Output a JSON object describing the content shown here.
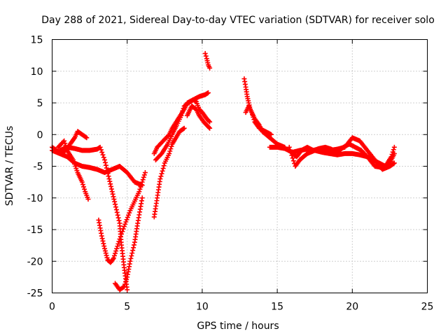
{
  "chart_data": {
    "type": "scatter",
    "title": "Day 288 of 2021, Sidereal Day-to-day VTEC variation (SDTVAR) for receiver solo",
    "xlabel": "GPS time / hours",
    "ylabel": "SDTVAR / TECUs",
    "xlim": [
      0,
      25
    ],
    "ylim": [
      -25,
      15
    ],
    "xticks": [
      0,
      5,
      10,
      15,
      20,
      25
    ],
    "yticks": [
      -25,
      -20,
      -15,
      -10,
      -5,
      0,
      5,
      10,
      15
    ],
    "grid": true,
    "marker": "+",
    "color": "#ff0000",
    "series": [
      {
        "name": "trace-1",
        "x": [
          0.0,
          0.3,
          0.6,
          0.9,
          1.2,
          1.5,
          1.7,
          2.0,
          2.3
        ],
        "y": [
          -2.0,
          -2.5,
          -3.0,
          -2.5,
          -1.5,
          -0.5,
          0.5,
          0.0,
          -0.5
        ]
      },
      {
        "name": "trace-2",
        "x": [
          0.4,
          0.8,
          1.0,
          1.4,
          1.7,
          2.0,
          2.2,
          2.4
        ],
        "y": [
          -2.0,
          -1.0,
          -2.5,
          -4.0,
          -6.0,
          -7.5,
          -9.0,
          -10.2
        ]
      },
      {
        "name": "trace-3",
        "x": [
          0.0,
          0.5,
          1.0,
          1.5,
          2.0,
          2.5,
          3.0,
          3.5,
          4.0,
          4.5,
          5.0,
          5.5,
          6.0
        ],
        "y": [
          -2.5,
          -3.0,
          -3.5,
          -4.5,
          -5.0,
          -5.2,
          -5.5,
          -6.0,
          -5.5,
          -5.0,
          -6.0,
          -7.5,
          -8.0
        ]
      },
      {
        "name": "trace-4",
        "x": [
          0.5,
          1.0,
          1.5,
          2.0,
          2.5,
          3.0,
          3.2,
          3.5,
          3.8,
          4.0,
          4.2,
          4.5,
          4.6,
          4.8,
          5.0
        ],
        "y": [
          -2.5,
          -2.0,
          -2.2,
          -2.5,
          -2.5,
          -2.3,
          -2.0,
          -4.0,
          -7.0,
          -9.0,
          -11.0,
          -14.0,
          -17.0,
          -21.0,
          -24.5
        ]
      },
      {
        "name": "trace-5",
        "x": [
          3.1,
          3.3,
          3.5,
          3.7,
          3.9,
          4.1,
          4.3,
          4.5,
          4.8,
          5.2,
          5.5,
          5.8,
          6.0,
          6.2
        ],
        "y": [
          -13.5,
          -16.0,
          -18.0,
          -19.8,
          -20.2,
          -19.5,
          -18.0,
          -16.5,
          -14.5,
          -12.0,
          -10.5,
          -9.0,
          -7.5,
          -6.0
        ]
      },
      {
        "name": "trace-6",
        "x": [
          4.2,
          4.5,
          4.8,
          5.0,
          5.2,
          5.5,
          5.7,
          6.0
        ],
        "y": [
          -23.5,
          -24.5,
          -24.0,
          -22.5,
          -20.0,
          -17.0,
          -14.0,
          -10.0
        ]
      },
      {
        "name": "trace-7",
        "x": [
          6.8,
          7.0,
          7.2,
          7.5,
          7.8,
          8.0,
          8.5,
          8.8
        ],
        "y": [
          -13.0,
          -10.0,
          -7.0,
          -4.5,
          -3.0,
          -1.5,
          0.5,
          1.0
        ]
      },
      {
        "name": "trace-8",
        "x": [
          6.8,
          7.0,
          7.4,
          7.8,
          8.0,
          8.4,
          8.8,
          9.0,
          9.4,
          9.8,
          10.2,
          10.4
        ],
        "y": [
          -3.0,
          -2.0,
          -1.0,
          0.0,
          1.0,
          2.5,
          4.0,
          5.0,
          5.5,
          6.0,
          6.3,
          6.6
        ]
      },
      {
        "name": "trace-9",
        "x": [
          6.9,
          7.3,
          7.7,
          8.0,
          8.3,
          8.6,
          8.8,
          9.1,
          9.4,
          9.6,
          9.8,
          10.0,
          10.3,
          10.5
        ],
        "y": [
          -4.0,
          -3.0,
          -1.5,
          0.0,
          1.5,
          3.0,
          4.5,
          5.0,
          5.5,
          5.2,
          4.0,
          3.5,
          2.5,
          2.0
        ]
      },
      {
        "name": "trace-10",
        "x": [
          9.0,
          9.3,
          9.6,
          9.8,
          10.1,
          10.3,
          10.5
        ],
        "y": [
          3.0,
          4.5,
          4.0,
          3.0,
          2.0,
          1.5,
          1.0
        ]
      },
      {
        "name": "trace-11",
        "x": [
          10.2,
          10.3,
          10.4,
          10.5
        ],
        "y": [
          12.8,
          12.0,
          11.0,
          10.5
        ]
      },
      {
        "name": "trace-12",
        "x": [
          12.8,
          12.9,
          13.0,
          13.1,
          13.2,
          13.3,
          13.5,
          13.8,
          14.0,
          14.5,
          15.0,
          15.5
        ],
        "y": [
          8.8,
          7.5,
          6.0,
          5.0,
          4.0,
          3.5,
          2.5,
          1.5,
          0.5,
          -0.5,
          -1.5,
          -2.0
        ]
      },
      {
        "name": "trace-13",
        "x": [
          12.9,
          13.1,
          13.3,
          13.5,
          13.8,
          14.2,
          14.6
        ],
        "y": [
          3.5,
          4.5,
          3.5,
          2.0,
          1.0,
          0.5,
          0.0
        ]
      },
      {
        "name": "trace-14",
        "x": [
          14.5,
          15.0,
          15.5,
          16.0,
          16.5,
          17.0,
          17.5,
          18.0,
          18.5,
          19.0,
          19.5,
          20.0,
          20.5,
          21.0,
          21.5,
          22.0,
          22.5,
          22.8
        ],
        "y": [
          -2.0,
          -2.0,
          -2.2,
          -2.8,
          -2.5,
          -2.3,
          -2.5,
          -2.5,
          -2.5,
          -2.3,
          -2.0,
          -0.5,
          -1.0,
          -2.5,
          -4.0,
          -5.5,
          -5.0,
          -4.5
        ]
      },
      {
        "name": "trace-15",
        "x": [
          15.8,
          16.2,
          16.5,
          17.0,
          17.5,
          18.0,
          18.5,
          19.0,
          19.5,
          20.0,
          20.5,
          21.0,
          21.5,
          22.0,
          22.5,
          22.8
        ],
        "y": [
          -2.0,
          -5.0,
          -4.0,
          -3.0,
          -2.5,
          -2.8,
          -3.0,
          -3.2,
          -3.0,
          -3.0,
          -3.2,
          -3.5,
          -5.0,
          -5.2,
          -4.5,
          -3.0
        ]
      },
      {
        "name": "trace-16",
        "x": [
          16.0,
          16.3,
          16.6,
          17.0,
          17.4,
          17.8,
          18.2,
          18.6,
          19.0,
          19.4,
          19.8,
          20.2,
          20.6,
          21.0,
          21.4,
          21.8,
          22.2,
          22.6,
          22.8
        ],
        "y": [
          -3.0,
          -3.5,
          -2.5,
          -2.0,
          -2.5,
          -2.2,
          -2.0,
          -2.3,
          -2.8,
          -2.0,
          -1.5,
          -2.0,
          -2.5,
          -3.5,
          -4.0,
          -4.5,
          -5.0,
          -3.5,
          -2.0
        ]
      }
    ]
  }
}
